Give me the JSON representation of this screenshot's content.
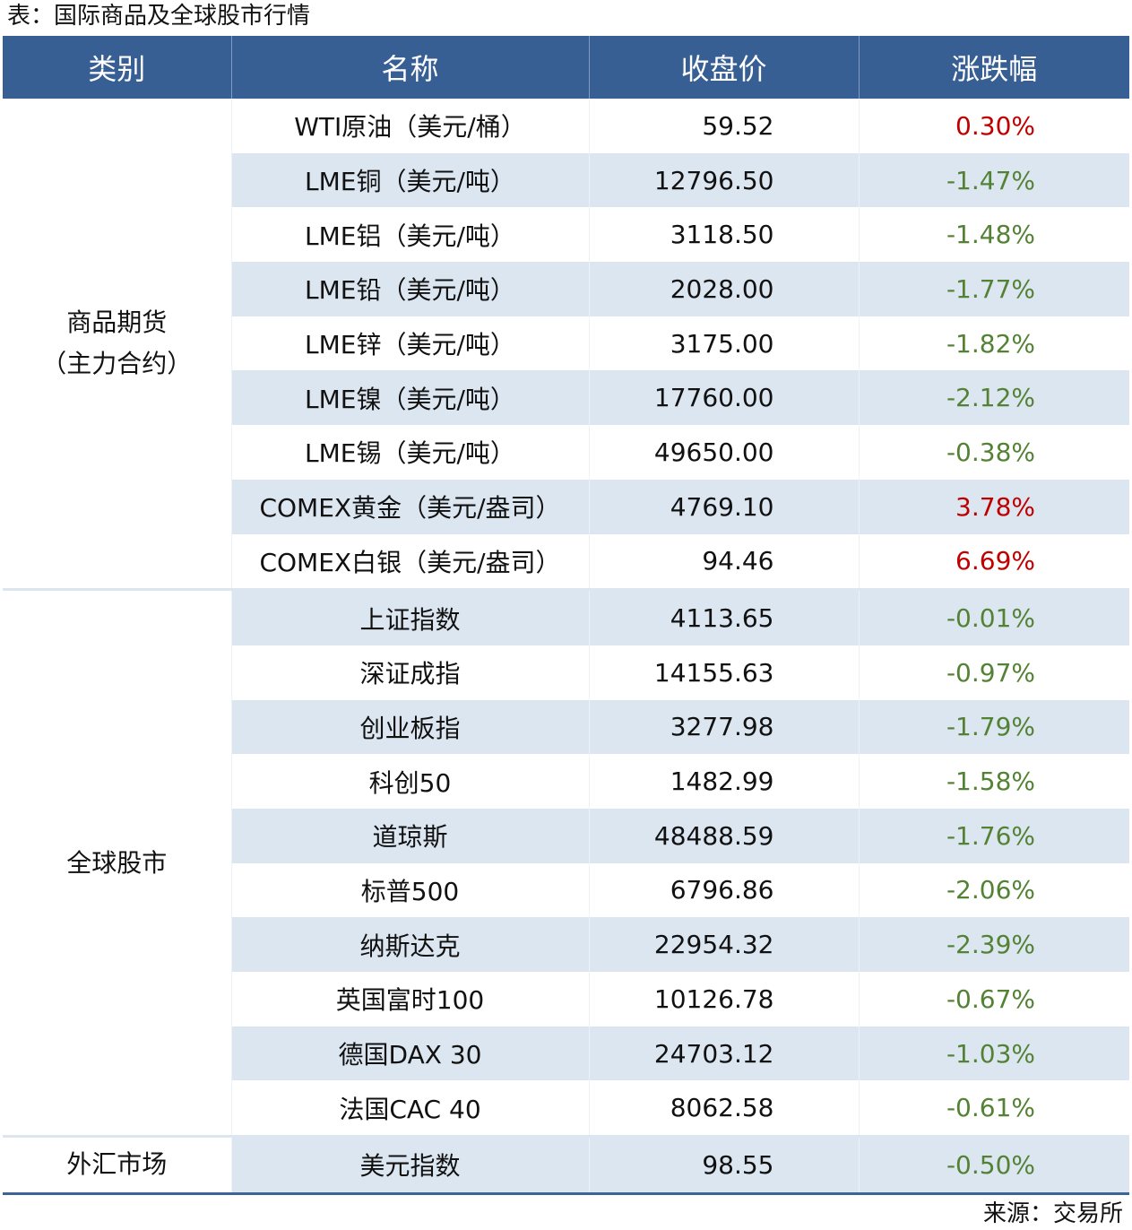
{
  "title": "表：国际商品及全球股市行情",
  "source": "来源：交易所",
  "colors": {
    "header": "#375f93",
    "stripe": "#dce6f1",
    "up": "#c00000",
    "down": "#548235"
  },
  "headers": [
    "类别",
    "名称",
    "收盘价",
    "涨跌幅"
  ],
  "groups": [
    {
      "category": "商品期货（主力合约）",
      "rows": [
        {
          "name": "WTI原油（美元/桶）",
          "price": "59.52",
          "change": "0.30%"
        },
        {
          "name": "LME铜（美元/吨）",
          "price": "12796.50",
          "change": "-1.47%"
        },
        {
          "name": "LME铝（美元/吨）",
          "price": "3118.50",
          "change": "-1.48%"
        },
        {
          "name": "LME铅（美元/吨）",
          "price": "2028.00",
          "change": "-1.77%"
        },
        {
          "name": "LME锌（美元/吨）",
          "price": "3175.00",
          "change": "-1.82%"
        },
        {
          "name": "LME镍（美元/吨）",
          "price": "17760.00",
          "change": "-2.12%"
        },
        {
          "name": "LME锡（美元/吨）",
          "price": "49650.00",
          "change": "-0.38%"
        },
        {
          "name": "COMEX黄金（美元/盎司）",
          "price": "4769.10",
          "change": "3.78%"
        },
        {
          "name": "COMEX白银（美元/盎司）",
          "price": "94.46",
          "change": "6.69%"
        }
      ]
    },
    {
      "category": "全球股市",
      "rows": [
        {
          "name": "上证指数",
          "price": "4113.65",
          "change": "-0.01%"
        },
        {
          "name": "深证成指",
          "price": "14155.63",
          "change": "-0.97%"
        },
        {
          "name": "创业板指",
          "price": "3277.98",
          "change": "-1.79%"
        },
        {
          "name": "科创50",
          "price": "1482.99",
          "change": "-1.58%"
        },
        {
          "name": "道琼斯",
          "price": "48488.59",
          "change": "-1.76%"
        },
        {
          "name": "标普500",
          "price": "6796.86",
          "change": "-2.06%"
        },
        {
          "name": "纳斯达克",
          "price": "22954.32",
          "change": "-2.39%"
        },
        {
          "name": "英国富时100",
          "price": "10126.78",
          "change": "-0.67%"
        },
        {
          "name": "德国DAX 30",
          "price": "24703.12",
          "change": "-1.03%"
        },
        {
          "name": "法国CAC 40",
          "price": "8062.58",
          "change": "-0.61%"
        }
      ]
    },
    {
      "category": "外汇市场",
      "rows": [
        {
          "name": "美元指数",
          "price": "98.55",
          "change": "-0.50%"
        }
      ]
    }
  ]
}
